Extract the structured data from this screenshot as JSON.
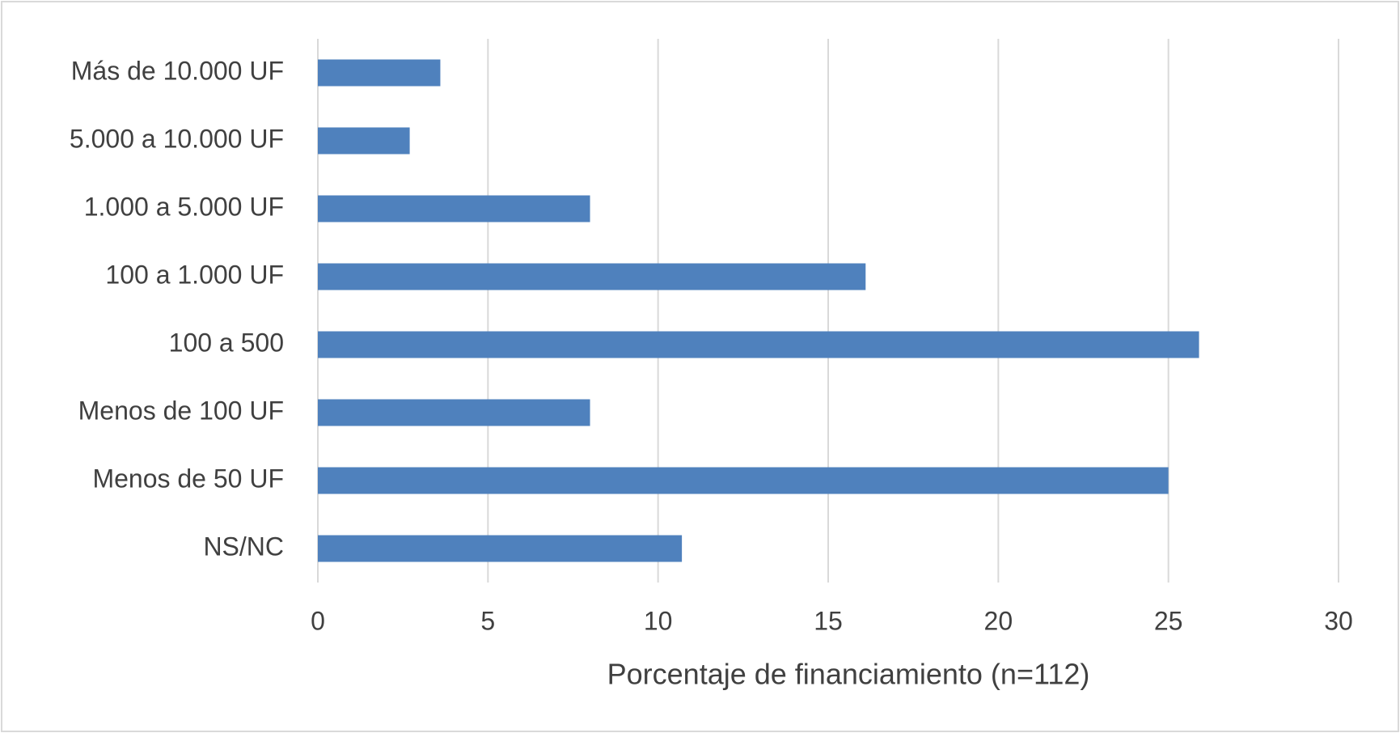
{
  "chart_data": {
    "type": "bar",
    "orientation": "horizontal",
    "xlabel": "Porcentaje de financiamiento (n=112)",
    "categories": [
      "Más de 10.000 UF",
      "5.000 a 10.000 UF",
      "1.000 a 5.000 UF",
      "100 a 1.000 UF",
      "100 a 500",
      "Menos de 100 UF",
      "Menos de 50 UF",
      "NS/NC"
    ],
    "values": [
      3.6,
      2.7,
      8.0,
      16.1,
      25.9,
      8.0,
      25.0,
      10.7
    ],
    "color": "#4f81bd",
    "xlim": [
      0,
      30
    ],
    "xticks": [
      0,
      5,
      10,
      15,
      20,
      25,
      30
    ],
    "grid": true
  }
}
